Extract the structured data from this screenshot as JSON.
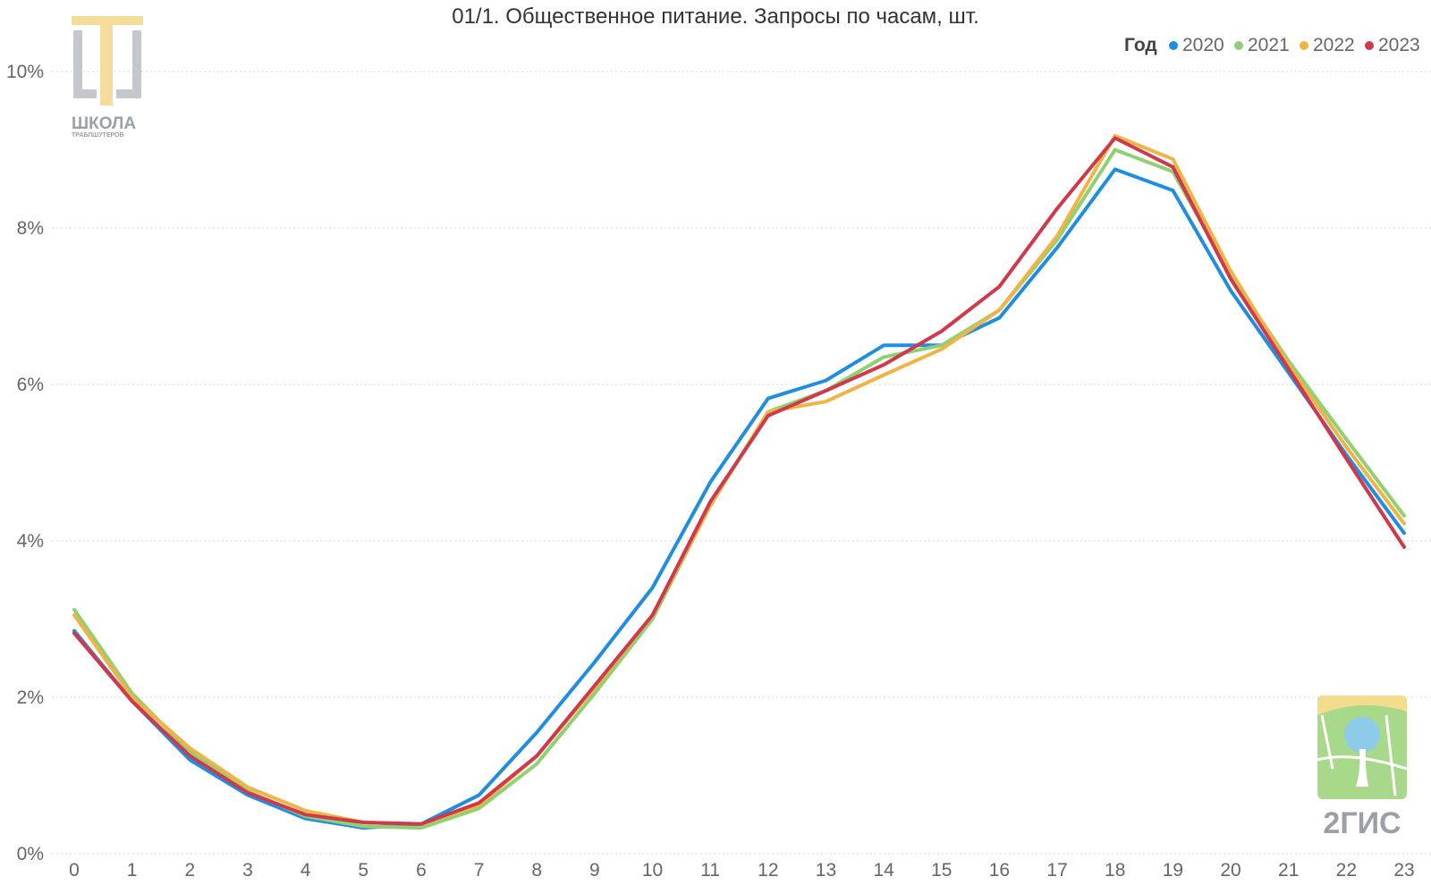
{
  "chart_data": {
    "type": "line",
    "title": "01/1. Общественное питание. Запросы по часам, шт.",
    "legend_title": "Год",
    "legend_position": "top-right",
    "grid": true,
    "x": [
      0,
      1,
      2,
      3,
      4,
      5,
      6,
      7,
      8,
      9,
      10,
      11,
      12,
      13,
      14,
      15,
      16,
      17,
      18,
      19,
      20,
      21,
      22,
      23
    ],
    "ylim": [
      0,
      10
    ],
    "yticks": [
      0,
      2,
      4,
      6,
      8,
      10
    ],
    "ytick_labels": [
      "0%",
      "2%",
      "4%",
      "6%",
      "8%",
      "10%"
    ],
    "series": [
      {
        "name": "2020",
        "color": "#1f8ee0",
        "values": [
          2.85,
          1.95,
          1.2,
          0.75,
          0.45,
          0.33,
          0.38,
          0.75,
          1.55,
          2.45,
          3.4,
          4.75,
          5.82,
          6.05,
          6.5,
          6.5,
          6.85,
          7.75,
          8.75,
          8.48,
          7.2,
          6.15,
          5.1,
          4.1
        ]
      },
      {
        "name": "2021",
        "color": "#8fd072",
        "values": [
          3.12,
          2.05,
          1.3,
          0.8,
          0.48,
          0.35,
          0.33,
          0.58,
          1.15,
          2.05,
          3.0,
          4.45,
          5.65,
          5.92,
          6.35,
          6.5,
          6.95,
          7.85,
          9.0,
          8.72,
          7.4,
          6.3,
          5.3,
          4.32
        ]
      },
      {
        "name": "2022",
        "color": "#eeb446",
        "values": [
          3.05,
          2.0,
          1.35,
          0.85,
          0.55,
          0.4,
          0.38,
          0.62,
          1.25,
          2.12,
          3.05,
          4.45,
          5.65,
          5.78,
          6.12,
          6.45,
          6.95,
          7.9,
          9.18,
          8.88,
          7.45,
          6.25,
          5.2,
          4.22
        ]
      },
      {
        "name": "2023",
        "color": "#d0384c",
        "values": [
          2.82,
          1.95,
          1.25,
          0.78,
          0.5,
          0.4,
          0.38,
          0.65,
          1.25,
          2.15,
          3.05,
          4.5,
          5.6,
          5.92,
          6.25,
          6.68,
          7.25,
          8.25,
          9.15,
          8.78,
          7.35,
          6.2,
          5.05,
          3.92
        ]
      }
    ]
  },
  "logos": {
    "school": {
      "name": "ШКОЛА",
      "sub": "ТРАБЛШУТЕРОВ"
    },
    "gis": {
      "name": "2ГИС"
    }
  }
}
